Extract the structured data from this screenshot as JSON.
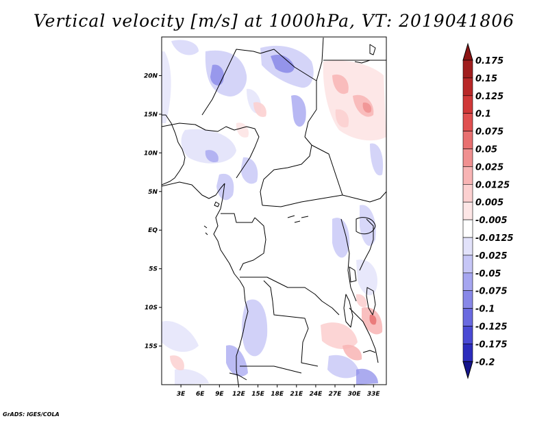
{
  "title": "Vertical velocity [m/s] at 1000hPa, VT: 2019041806",
  "credit": "GrADS: IGES/COLA",
  "map": {
    "lat_range": [
      -20,
      25
    ],
    "lon_range": [
      0,
      35
    ],
    "lat_labels": [
      {
        "value": 20,
        "label": "20N"
      },
      {
        "value": 15,
        "label": "15N"
      },
      {
        "value": 10,
        "label": "10N"
      },
      {
        "value": 5,
        "label": "5N"
      },
      {
        "value": 0,
        "label": "EQ"
      },
      {
        "value": -5,
        "label": "5S"
      },
      {
        "value": -10,
        "label": "10S"
      },
      {
        "value": -15,
        "label": "15S"
      }
    ],
    "lon_labels": [
      {
        "value": 3,
        "label": "3E"
      },
      {
        "value": 6,
        "label": "6E"
      },
      {
        "value": 9,
        "label": "9E"
      },
      {
        "value": 12,
        "label": "12E"
      },
      {
        "value": 15,
        "label": "15E"
      },
      {
        "value": 18,
        "label": "18E"
      },
      {
        "value": 21,
        "label": "21E"
      },
      {
        "value": 24,
        "label": "24E"
      },
      {
        "value": 27,
        "label": "27E"
      },
      {
        "value": 30,
        "label": "30E"
      },
      {
        "value": 33,
        "label": "33E"
      }
    ]
  },
  "colorbar": {
    "levels": [
      {
        "label": "0.175",
        "color": "#a01e1e"
      },
      {
        "label": "0.15",
        "color": "#b82828"
      },
      {
        "label": "0.125",
        "color": "#d03838"
      },
      {
        "label": "0.1",
        "color": "#e05050"
      },
      {
        "label": "0.075",
        "color": "#e87070"
      },
      {
        "label": "0.05",
        "color": "#f09090"
      },
      {
        "label": "0.025",
        "color": "#f8b4b4"
      },
      {
        "label": "0.0125",
        "color": "#fcd0d0"
      },
      {
        "label": "0.005",
        "color": "#fde6e6"
      },
      {
        "label": "-0.005",
        "color": "#ffffff"
      },
      {
        "label": "-0.0125",
        "color": "#e2e2fa"
      },
      {
        "label": "-0.025",
        "color": "#c6c6f6"
      },
      {
        "label": "-0.05",
        "color": "#a6a6f0"
      },
      {
        "label": "-0.075",
        "color": "#8888e8"
      },
      {
        "label": "-0.1",
        "color": "#6a6ae0"
      },
      {
        "label": "-0.125",
        "color": "#4a4ad4"
      },
      {
        "label": "-0.175",
        "color": "#2c2cbc"
      },
      {
        "label": "-0.2",
        "color": "#1a1a9a"
      }
    ],
    "top_arrow_color": "#8c1414",
    "bottom_arrow_color": "#14148c"
  }
}
